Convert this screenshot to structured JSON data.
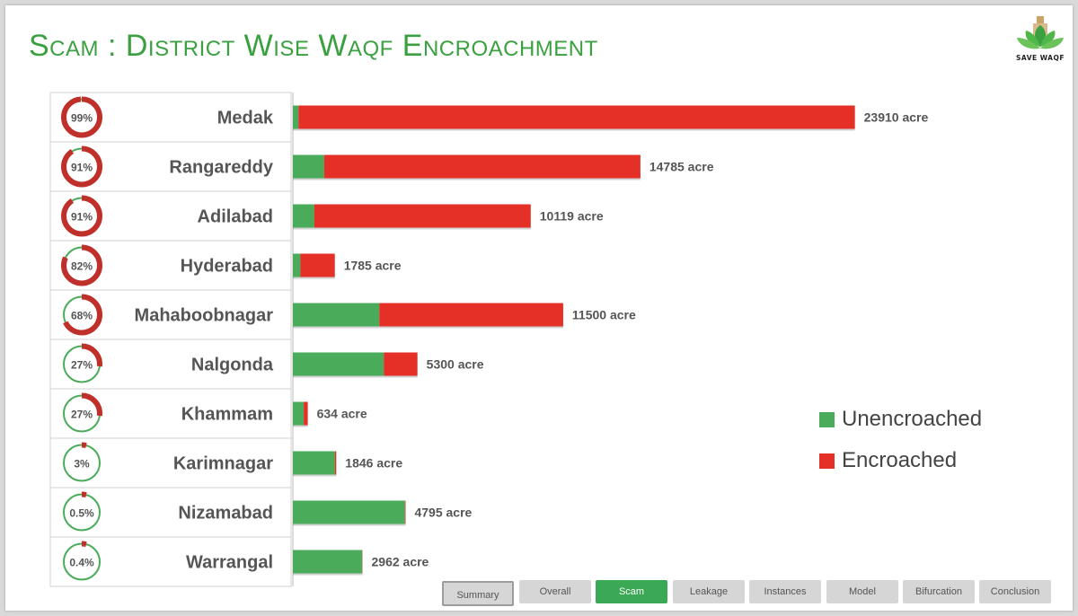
{
  "title": "Scam : District Wise Waqf Encroachment",
  "logo": {
    "text": "SAVE WAQF"
  },
  "colors": {
    "encroached": "#e53028",
    "unencroached": "#4aac5a",
    "ring_track": "#c0302a"
  },
  "legend": [
    {
      "label": "Unencroached",
      "color": "#4aac5a"
    },
    {
      "label": "Encroached",
      "color": "#e53028"
    }
  ],
  "tabs": [
    {
      "label": "Summary",
      "active": false
    },
    {
      "label": "Overall",
      "active": false
    },
    {
      "label": "Scam",
      "active": true
    },
    {
      "label": "Leakage",
      "active": false
    },
    {
      "label": "Instances",
      "active": false
    },
    {
      "label": "Model",
      "active": false
    },
    {
      "label": "Bifurcation",
      "active": false
    },
    {
      "label": "Conclusion",
      "active": false
    }
  ],
  "chart_data": {
    "type": "bar",
    "orientation": "horizontal",
    "stacked": true,
    "categories": [
      "Medak",
      "Rangareddy",
      "Adilabad",
      "Hyderabad",
      "Mahaboobnagar",
      "Nalgonda",
      "Khammam",
      "Karimnagar",
      "Nizamabad",
      "Warrangal"
    ],
    "series": [
      {
        "name": "Unencroached",
        "values": [
          239,
          1331,
          911,
          321,
          3680,
          3869,
          463,
          1791,
          4771,
          2950
        ]
      },
      {
        "name": "Encroached",
        "values": [
          23671,
          13454,
          9208,
          1464,
          7820,
          1431,
          171,
          55,
          24,
          12
        ]
      }
    ],
    "totals": [
      23910,
      14785,
      10119,
      1785,
      11500,
      5300,
      634,
      1846,
      4795,
      2962
    ],
    "total_labels": [
      "23910 acre",
      "14785 acre",
      "10119 acre",
      "1785 acre",
      "11500 acre",
      "5300 acre",
      "634 acre",
      "1846 acre",
      "4795 acre",
      "2962 acre"
    ],
    "encroached_pct": [
      99,
      91,
      91,
      82,
      68,
      27,
      27,
      3,
      0.5,
      0.4
    ],
    "pct_labels": [
      "99%",
      "91%",
      "91%",
      "82%",
      "68%",
      "27%",
      "27%",
      "3%",
      "0.5%",
      "0.4%"
    ],
    "xlim": [
      0,
      24000
    ],
    "legend_position": "right"
  }
}
